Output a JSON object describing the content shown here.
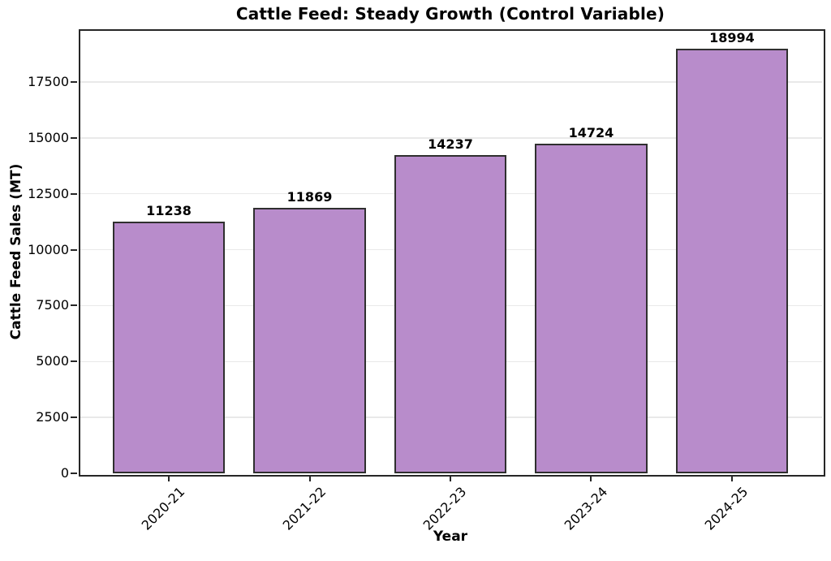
{
  "chart_data": {
    "type": "bar",
    "title": "Cattle Feed: Steady Growth (Control Variable)",
    "xlabel": "Year",
    "ylabel": "Cattle Feed Sales (MT)",
    "categories": [
      "2020-21",
      "2021-22",
      "2022-23",
      "2023-24",
      "2024-25"
    ],
    "values": [
      11238,
      11869,
      14237,
      14724,
      18994
    ],
    "bar_labels": [
      "11238",
      "11869",
      "14237",
      "14724",
      "18994"
    ],
    "yticks": [
      0,
      2500,
      5000,
      7500,
      10000,
      12500,
      15000,
      17500
    ],
    "ytick_labels": [
      "0",
      "2500",
      "5000",
      "7500",
      "10000",
      "12500",
      "15000",
      "17500"
    ],
    "ylim": [
      0,
      19860
    ],
    "grid": true,
    "legend": "none",
    "colors": {
      "bar_fill": "#b88ccb",
      "bar_edge": "#2f2f2f",
      "grid": "#e9e9e9",
      "spine": "#262626",
      "text": "#000000",
      "background": "#ffffff"
    }
  }
}
